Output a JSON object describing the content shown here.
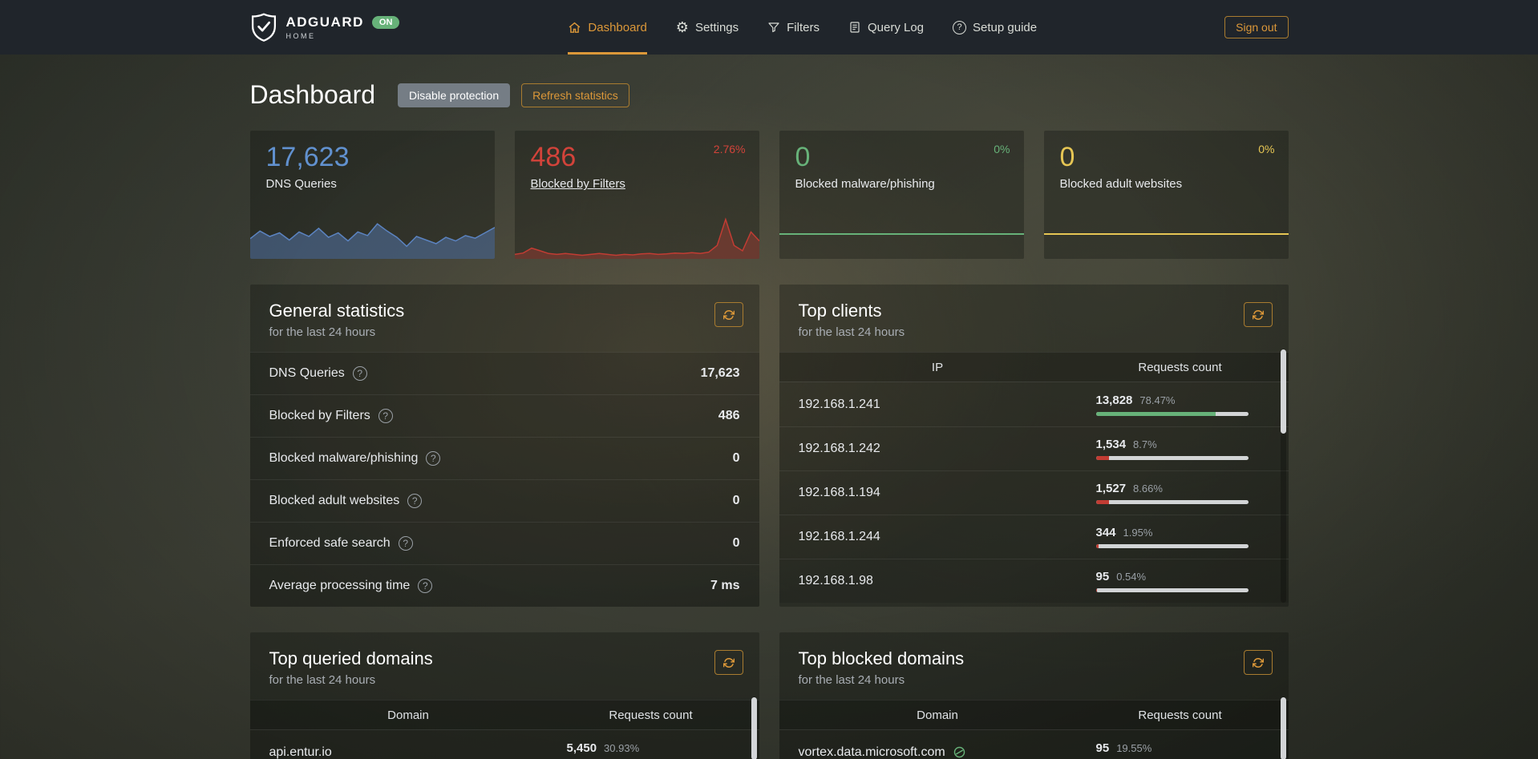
{
  "colors": {
    "accent": "#dc9839",
    "green": "#67b279",
    "bar": {
      "green": "#67b279",
      "red": "#c23c33"
    },
    "bar_track": "rgba(230,232,234,0.9)"
  },
  "icons": {
    "gear_glyph": "⚙",
    "question_glyph": "?"
  },
  "header": {
    "brand_name": "ADGUARD",
    "brand_sub": "HOME",
    "status_badge": "ON",
    "nav": [
      {
        "label": "Dashboard",
        "icon": "home-icon"
      },
      {
        "label": "Settings",
        "icon": "gear-icon"
      },
      {
        "label": "Filters",
        "icon": "funnel-icon"
      },
      {
        "label": "Query Log",
        "icon": "log-icon"
      },
      {
        "label": "Setup guide",
        "icon": "help-circle-icon"
      }
    ],
    "sign_out_label": "Sign out"
  },
  "page": {
    "title": "Dashboard",
    "disable_protection_label": "Disable protection",
    "refresh_statistics_label": "Refresh statistics"
  },
  "stat_cards": [
    {
      "value": "17,623",
      "label": "DNS Queries",
      "percent": "",
      "value_color": "#6191cf",
      "chart_color": "#5b83c0",
      "chart_fill": "rgba(91,131,192,0.45)",
      "spark": [
        0.45,
        0.62,
        0.5,
        0.58,
        0.42,
        0.6,
        0.5,
        0.68,
        0.48,
        0.58,
        0.4,
        0.6,
        0.52,
        0.78,
        0.62,
        0.48,
        0.28,
        0.5,
        0.42,
        0.34,
        0.48,
        0.4,
        0.52,
        0.46,
        0.58,
        0.7
      ]
    },
    {
      "value": "486",
      "label": "Blocked by Filters",
      "percent": "2.76%",
      "value_color": "#d2433a",
      "chart_color": "#c23c33",
      "chart_fill": "rgba(194,60,51,0.35)",
      "spark": [
        0.1,
        0.13,
        0.24,
        0.18,
        0.12,
        0.1,
        0.12,
        0.1,
        0.08,
        0.1,
        0.12,
        0.1,
        0.08,
        0.1,
        0.09,
        0.11,
        0.12,
        0.1,
        0.11,
        0.13,
        0.12,
        0.14,
        0.12,
        0.15,
        0.3,
        0.88,
        0.3,
        0.18,
        0.6,
        0.4
      ]
    },
    {
      "value": "0",
      "label": "Blocked malware/phishing",
      "percent": "0%",
      "value_color": "#67b279",
      "chart_color": "#67b279"
    },
    {
      "value": "0",
      "label": "Blocked adult websites",
      "percent": "0%",
      "value_color": "#e6c654",
      "chart_color": "#e6c654"
    }
  ],
  "general_stats": {
    "title": "General statistics",
    "subtitle": "for the last 24 hours",
    "rows": [
      {
        "label": "DNS Queries",
        "value": "17,623"
      },
      {
        "label": "Blocked by Filters",
        "value": "486"
      },
      {
        "label": "Blocked malware/phishing",
        "value": "0"
      },
      {
        "label": "Blocked adult websites",
        "value": "0"
      },
      {
        "label": "Enforced safe search",
        "value": "0"
      },
      {
        "label": "Average processing time",
        "value": "7 ms"
      }
    ]
  },
  "top_clients": {
    "title": "Top clients",
    "subtitle": "for the last 24 hours",
    "columns": {
      "ip": "IP",
      "count": "Requests count"
    },
    "rows": [
      {
        "ip": "192.168.1.241",
        "count": "13,828",
        "percent": "78.47%",
        "bar": 78.47,
        "bar_color": "green"
      },
      {
        "ip": "192.168.1.242",
        "count": "1,534",
        "percent": "8.7%",
        "bar": 8.7,
        "bar_color": "red"
      },
      {
        "ip": "192.168.1.194",
        "count": "1,527",
        "percent": "8.66%",
        "bar": 8.66,
        "bar_color": "red"
      },
      {
        "ip": "192.168.1.244",
        "count": "344",
        "percent": "1.95%",
        "bar": 1.95,
        "bar_color": "red"
      },
      {
        "ip": "192.168.1.98",
        "count": "95",
        "percent": "0.54%",
        "bar": 0.54,
        "bar_color": "red"
      }
    ]
  },
  "top_queried": {
    "title": "Top queried domains",
    "subtitle": "for the last 24 hours",
    "columns": {
      "domain": "Domain",
      "count": "Requests count"
    },
    "rows": [
      {
        "domain": "api.entur.io",
        "count": "5,450",
        "percent": "30.93%",
        "bar": 30.93,
        "bar_color": "red"
      }
    ]
  },
  "top_blocked": {
    "title": "Top blocked domains",
    "subtitle": "for the last 24 hours",
    "columns": {
      "domain": "Domain",
      "count": "Requests count"
    },
    "rows": [
      {
        "domain": "vortex.data.microsoft.com",
        "count": "95",
        "percent": "19.55%",
        "bar": 19.55,
        "bar_color": "red"
      }
    ]
  }
}
